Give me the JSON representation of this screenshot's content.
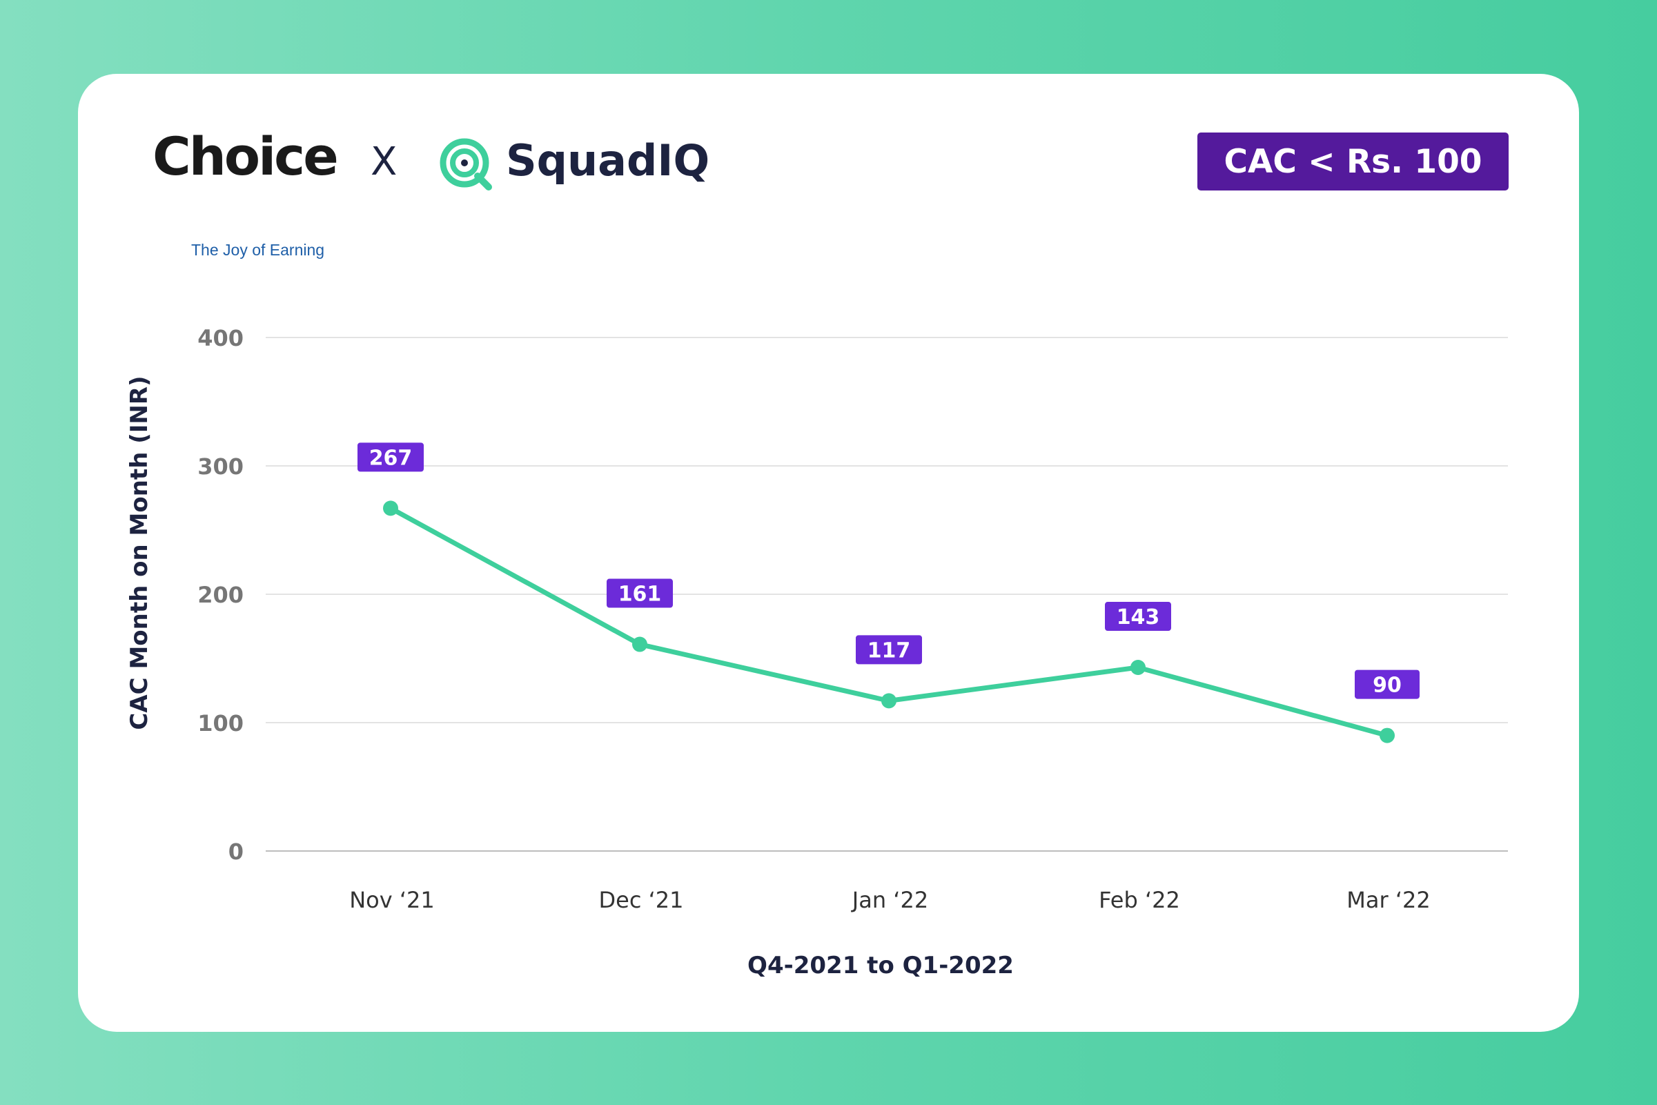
{
  "header": {
    "choice_logo_text": "Choice",
    "choice_tagline": "The Joy of Earning",
    "separator": "X",
    "squadiq_logo_text": "SquadIQ",
    "badge_text": "CAC < Rs. 100"
  },
  "colors": {
    "background_start": "#84dfc0",
    "background_end": "#46cd9f",
    "line": "#3ecf9c",
    "label_bg": "#6c2bd9",
    "badge_bg": "#541a9c",
    "navy": "#1d2340"
  },
  "chart_data": {
    "type": "line",
    "title": "",
    "xlabel": "Q4-2021 to Q1-2022",
    "ylabel": "CAC  Month on Month (INR)",
    "categories": [
      "Nov ‘21",
      "Dec ‘21",
      "Jan ‘22",
      "Feb ‘22",
      "Mar ‘22"
    ],
    "series": [
      {
        "name": "CAC",
        "values": [
          267,
          161,
          117,
          143,
          90
        ],
        "labels": [
          "267",
          "161",
          "117",
          "143",
          "90"
        ]
      }
    ],
    "ylim": [
      0,
      400
    ],
    "yticks": [
      0,
      100,
      200,
      300,
      400
    ],
    "ytick_labels": [
      "0",
      "100",
      "200",
      "300",
      "400"
    ],
    "grid": true,
    "legend": "none"
  }
}
